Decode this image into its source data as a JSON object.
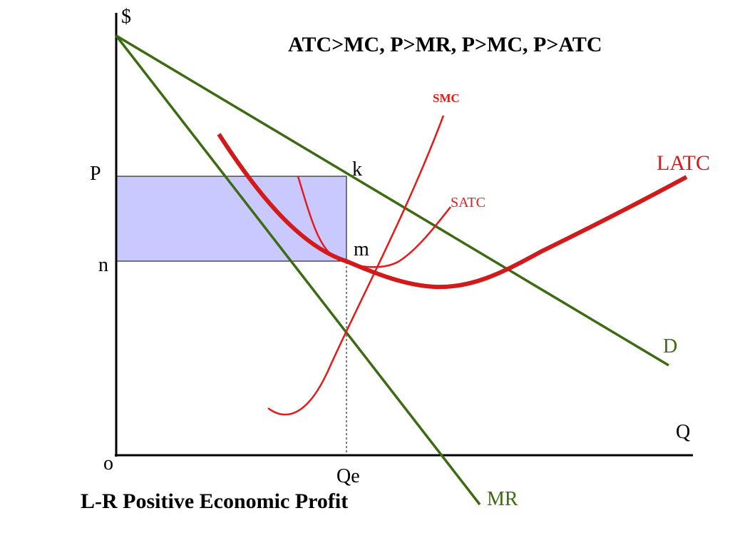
{
  "title": "ATC>MC,  P>MR,  P>MC, P>ATC",
  "caption": "L-R Positive Economic Profit",
  "axes": {
    "y_label": "$",
    "x_label": "Q",
    "origin_label": "o",
    "price_label": "P",
    "cost_label": "n",
    "quantity_label": "Qe"
  },
  "points": {
    "k": "k",
    "m": "m"
  },
  "curves": {
    "demand": "D",
    "marginal_revenue": "MR",
    "latc": "LATC",
    "satc": "SATC",
    "smc": "SMC"
  },
  "colors": {
    "green": "#3d6b12",
    "red": "#e51a1a",
    "dark_red": "#d11a1a",
    "profit_fill": "#c9c9ff",
    "axis": "#000000"
  }
}
